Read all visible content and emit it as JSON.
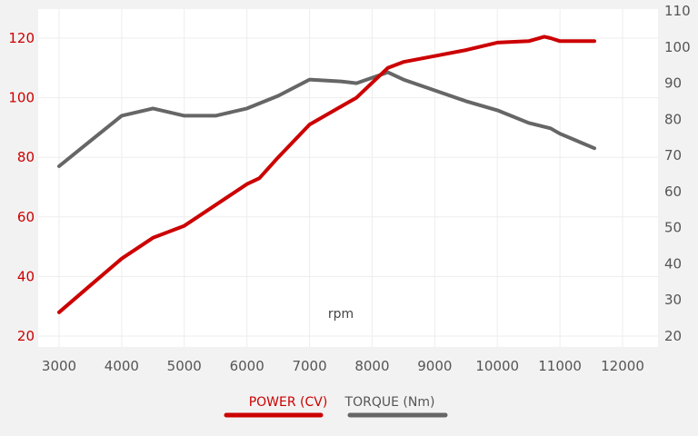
{
  "chart_data": {
    "type": "line",
    "xlabel": "rpm",
    "x_ticks": [
      3000,
      4000,
      5000,
      6000,
      7000,
      8000,
      9000,
      10000,
      11000,
      12000
    ],
    "y_left_ticks": [
      20,
      40,
      60,
      80,
      100,
      120
    ],
    "y_right_ticks": [
      20,
      30,
      40,
      50,
      60,
      70,
      80,
      90,
      100,
      110
    ],
    "xlim": [
      3000,
      12000
    ],
    "ylim_left": [
      20,
      120
    ],
    "ylim_right": [
      20,
      110
    ],
    "grid": true,
    "legend_position": "bottom-center",
    "series": [
      {
        "name": "POWER (CV)",
        "axis": "left",
        "color": "#cc0000",
        "x": [
          3000,
          3500,
          4000,
          4500,
          5000,
          5500,
          6000,
          6200,
          6500,
          7000,
          7500,
          7750,
          8000,
          8250,
          8500,
          9000,
          9500,
          10000,
          10500,
          10750,
          10850,
          11000,
          11550
        ],
        "y": [
          28,
          37,
          46,
          53,
          57,
          64,
          71,
          73,
          80,
          91,
          97,
          100,
          105,
          110,
          112,
          114,
          116,
          118.5,
          119,
          120.5,
          120,
          119,
          119
        ]
      },
      {
        "name": "TORQUE (Nm)",
        "axis": "right",
        "color": "#666666",
        "x": [
          3000,
          3500,
          4000,
          4500,
          5000,
          5500,
          6000,
          6500,
          7000,
          7500,
          7750,
          8000,
          8250,
          8500,
          9000,
          9500,
          10000,
          10500,
          10850,
          11000,
          11550
        ],
        "y": [
          67,
          74,
          81,
          83,
          81,
          81,
          83,
          86.5,
          91,
          90.5,
          90,
          91.5,
          93,
          91,
          88,
          85,
          82.5,
          79,
          77.5,
          76,
          72
        ]
      }
    ]
  }
}
